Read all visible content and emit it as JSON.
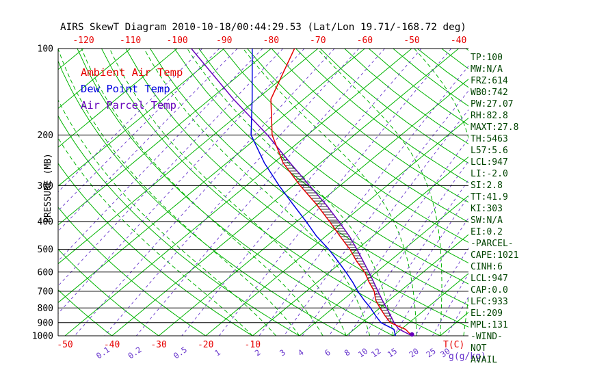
{
  "title": "AIRS SkewT Diagram 2010-10-18/00:44:29.53 (Lat/Lon 19.71/-168.72 deg)",
  "legend": {
    "ambient": {
      "label": "Ambient Air Temp",
      "color": "#e60000"
    },
    "dewpoint": {
      "label": "Dew Point Temp",
      "color": "#0000e0"
    },
    "parcel": {
      "label": "Air Parcel Temp",
      "color": "#6600bb"
    }
  },
  "axes": {
    "pressure_label": "PRESSURE (MB)",
    "pressure_ticks": [
      100,
      200,
      300,
      400,
      500,
      600,
      700,
      800,
      900,
      1000
    ],
    "top_temp_ticks": [
      -120,
      -110,
      -100,
      -90,
      -80,
      -70,
      -60,
      -50,
      -40
    ],
    "bottom_temp_ticks": [
      -50,
      -40,
      -30,
      -20,
      -10
    ],
    "temp_unit_label": "T(C)",
    "mixing_unit_label": "g(g/kg)",
    "mixing_ratio_labels": [
      0.1,
      0.2,
      0.5,
      1,
      2,
      3,
      4,
      6,
      8,
      10,
      12,
      15,
      20,
      25,
      30
    ]
  },
  "indices": {
    "lines": [
      "TP:100",
      "MW:N/A",
      "FRZ:614",
      "WB0:742",
      "PW:27.07",
      "RH:82.8",
      "MAXT:27.8",
      "TH:5463",
      "L57:5.6",
      "LCL:947",
      "LI:-2.0",
      "SI:2.8",
      "TT:41.9",
      "KI:303",
      "SW:N/A",
      "EI:0.2",
      "-PARCEL-",
      "CAPE:1021",
      "CINH:6",
      "LCL:947",
      "CAP:0.0",
      "LFC:933",
      "EL:209",
      "MPL:131",
      "-WIND-",
      "NOT",
      "AVAIL"
    ]
  },
  "colors": {
    "green": "#00b400",
    "mixing_purple": "#6633cc",
    "ambient_red": "#e60000",
    "dewpoint_blue": "#0000e0",
    "parcel_purple": "#6600bb",
    "axis_black": "#000000",
    "indices_green": "#004400",
    "hatch_black": "#000000"
  },
  "chart_data": {
    "type": "line",
    "title": "AIRS SkewT Diagram 2010-10-18/00:44:29.53 (Lat/Lon 19.71/-168.72 deg)",
    "x_axis": {
      "label": "T(C)",
      "top_ticks_at_100mb": [
        -120,
        -110,
        -100,
        -90,
        -80,
        -70,
        -60,
        -50,
        -40
      ],
      "bottom_ticks_at_1000mb": [
        -50,
        -40,
        -30,
        -20,
        -10
      ]
    },
    "y_axis": {
      "label": "PRESSURE (MB)",
      "scale": "log",
      "range": [
        100,
        1000
      ]
    },
    "series": [
      {
        "name": "Ambient Air Temp",
        "color": "#e60000",
        "pressure_mb": [
          100,
          150,
          200,
          250,
          300,
          350,
          400,
          450,
          500,
          550,
          600,
          650,
          700,
          750,
          800,
          850,
          900,
          950,
          1000
        ],
        "temp_c": [
          -75,
          -67,
          -57.5,
          -48,
          -38.5,
          -30,
          -23,
          -17,
          -11.5,
          -7,
          -2.5,
          1,
          4.5,
          7,
          10,
          13,
          16,
          21,
          24
        ]
      },
      {
        "name": "Dew Point Temp",
        "color": "#0000e0",
        "pressure_mb": [
          100,
          150,
          200,
          250,
          300,
          350,
          400,
          450,
          500,
          550,
          600,
          650,
          700,
          750,
          800,
          850,
          900,
          950,
          1000
        ],
        "temp_c": [
          -84,
          -71,
          -62,
          -52,
          -43,
          -35,
          -28,
          -22,
          -16,
          -11,
          -6.5,
          -2.5,
          1,
          4.5,
          8,
          11,
          14,
          18.5,
          20.5
        ]
      },
      {
        "name": "Air Parcel Temp",
        "color": "#6600bb",
        "pressure_mb": [
          100,
          150,
          200,
          250,
          300,
          350,
          400,
          450,
          500,
          550,
          600,
          650,
          700,
          750,
          800,
          850,
          900,
          947,
          1000
        ],
        "temp_c": [
          -97,
          -75,
          -58.5,
          -46.5,
          -36.5,
          -28,
          -21,
          -15,
          -10,
          -5.6,
          -1.6,
          2,
          5.3,
          8.4,
          11.4,
          14.2,
          16.8,
          19.4,
          24
        ]
      }
    ],
    "cape_hatch_pressure_range_mb": [
      209,
      933
    ],
    "background_lines": {
      "isotherms_c": {
        "min": -130,
        "max": 40,
        "step": 10,
        "style": "solid-green"
      },
      "dry_adiabats_theta_c": {
        "min": -40,
        "max": 180,
        "step": 10,
        "style": "solid-green-curved"
      },
      "moist_adiabats_start_c": [
        -10,
        -5,
        0,
        5,
        10,
        15,
        20,
        25,
        30,
        35,
        40,
        45,
        50
      ],
      "mixing_ratio_g_kg": [
        0.0005,
        0.001,
        0.002,
        0.005,
        0.01,
        0.02,
        0.05,
        0.1,
        0.2,
        0.5,
        1,
        2,
        3,
        4,
        6,
        8,
        10,
        12,
        15,
        20,
        25,
        30
      ]
    },
    "legend_entries": [
      "Ambient Air Temp",
      "Dew Point Temp",
      "Air Parcel Temp"
    ],
    "grid": "skew-t log-p"
  }
}
